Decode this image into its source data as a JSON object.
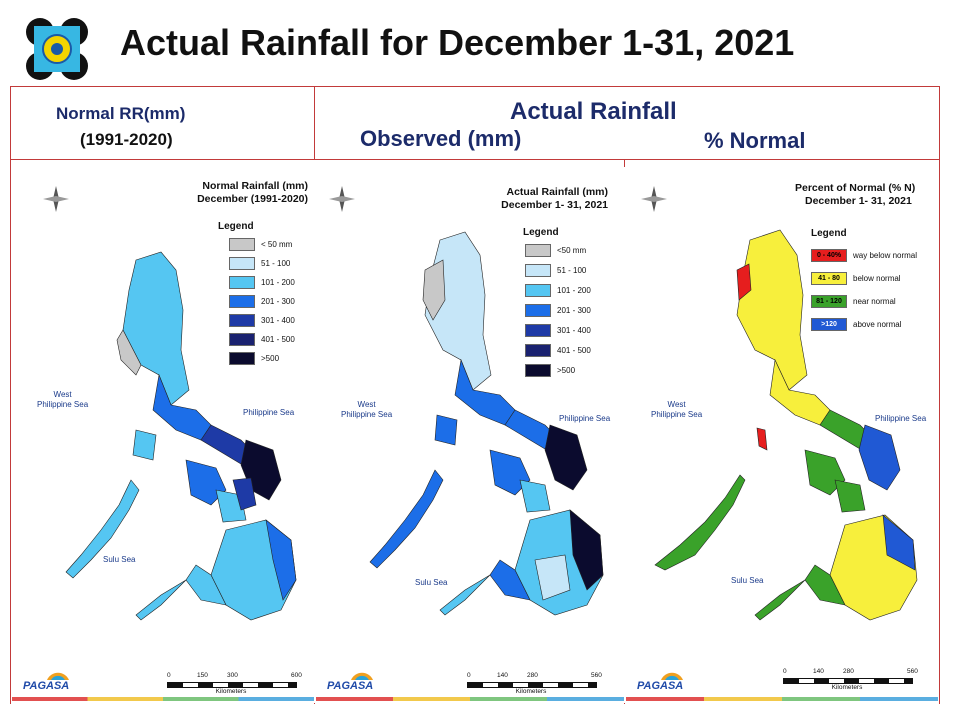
{
  "header": {
    "title": "Actual Rainfall for December 1-31, 2021"
  },
  "column_headers": {
    "normal_line1": "Normal RR(mm)",
    "normal_line2": "(1991-2020)",
    "actual": "Actual Rainfall",
    "observed": "Observed (mm)",
    "percent": "% Normal"
  },
  "colors": {
    "frame_border": "#c23a3a",
    "lt50": "#c8c8c8",
    "r51_100": "#c6e6f8",
    "r101_200": "#55c6f2",
    "r201_300": "#1c6ee8",
    "r301_400": "#1e3aa6",
    "r401_500": "#1a2270",
    "gt500": "#0b0b2e",
    "way_below": "#e61e1e",
    "below": "#f7ef3c",
    "near": "#3aa22a",
    "above": "#2059d4"
  },
  "maps": [
    {
      "title_line1": "Normal Rainfall (mm)",
      "title_line2": "December (1991-2020)",
      "legend_heading": "Legend",
      "legend": [
        {
          "label": "< 50 mm",
          "color": "#c8c8c8"
        },
        {
          "label": "51 - 100",
          "color": "#c6e6f8"
        },
        {
          "label": "101 - 200",
          "color": "#55c6f2"
        },
        {
          "label": "201 - 300",
          "color": "#1c6ee8"
        },
        {
          "label": "301 - 400",
          "color": "#1e3aa6"
        },
        {
          "label": "401 - 500",
          "color": "#1a2270"
        },
        {
          "label": ">500",
          "color": "#0b0b2e"
        }
      ],
      "west_label": "West\nPhilippine Sea",
      "east_label": "Philippine Sea",
      "sulu_label": "Sulu Sea",
      "scale_ticks": [
        "0",
        "150",
        "300",
        "600"
      ],
      "scale_unit": "Kilometers"
    },
    {
      "title_line1": "Actual Rainfall (mm)",
      "title_line2": "December 1- 31, 2021",
      "legend_heading": "Legend",
      "legend": [
        {
          "label": "<50 mm",
          "color": "#c8c8c8"
        },
        {
          "label": "51 - 100",
          "color": "#c6e6f8"
        },
        {
          "label": "101 - 200",
          "color": "#55c6f2"
        },
        {
          "label": "201 - 300",
          "color": "#1c6ee8"
        },
        {
          "label": "301 - 400",
          "color": "#1e3aa6"
        },
        {
          "label": "401 - 500",
          "color": "#1a2270"
        },
        {
          "label": ">500",
          "color": "#0b0b2e"
        }
      ],
      "west_label": "West\nPhilippine Sea",
      "east_label": "Philippine Sea",
      "sulu_label": "Sulu Sea",
      "scale_ticks": [
        "0",
        "140",
        "280",
        "560"
      ],
      "scale_unit": "Kilometers"
    },
    {
      "title_line1": "Percent of Normal (% N)",
      "title_line2": "December 1- 31, 2021",
      "legend_heading": "Legend",
      "legend": [
        {
          "swatch": "0 - 40%",
          "label": "way below normal",
          "color": "#e61e1e"
        },
        {
          "swatch": "41 - 80",
          "label": "below normal",
          "color": "#f7ef3c"
        },
        {
          "swatch": "81 - 120",
          "label": "near normal",
          "color": "#3aa22a"
        },
        {
          "swatch": ">120",
          "label": "above normal",
          "color": "#2059d4"
        }
      ],
      "west_label": "West\nPhilippine Sea",
      "east_label": "Philippine Sea",
      "sulu_label": "Sulu Sea",
      "scale_ticks": [
        "0",
        "140",
        "280",
        "560"
      ],
      "scale_unit": "Kilometers"
    }
  ],
  "logo_text": "PAGASA"
}
